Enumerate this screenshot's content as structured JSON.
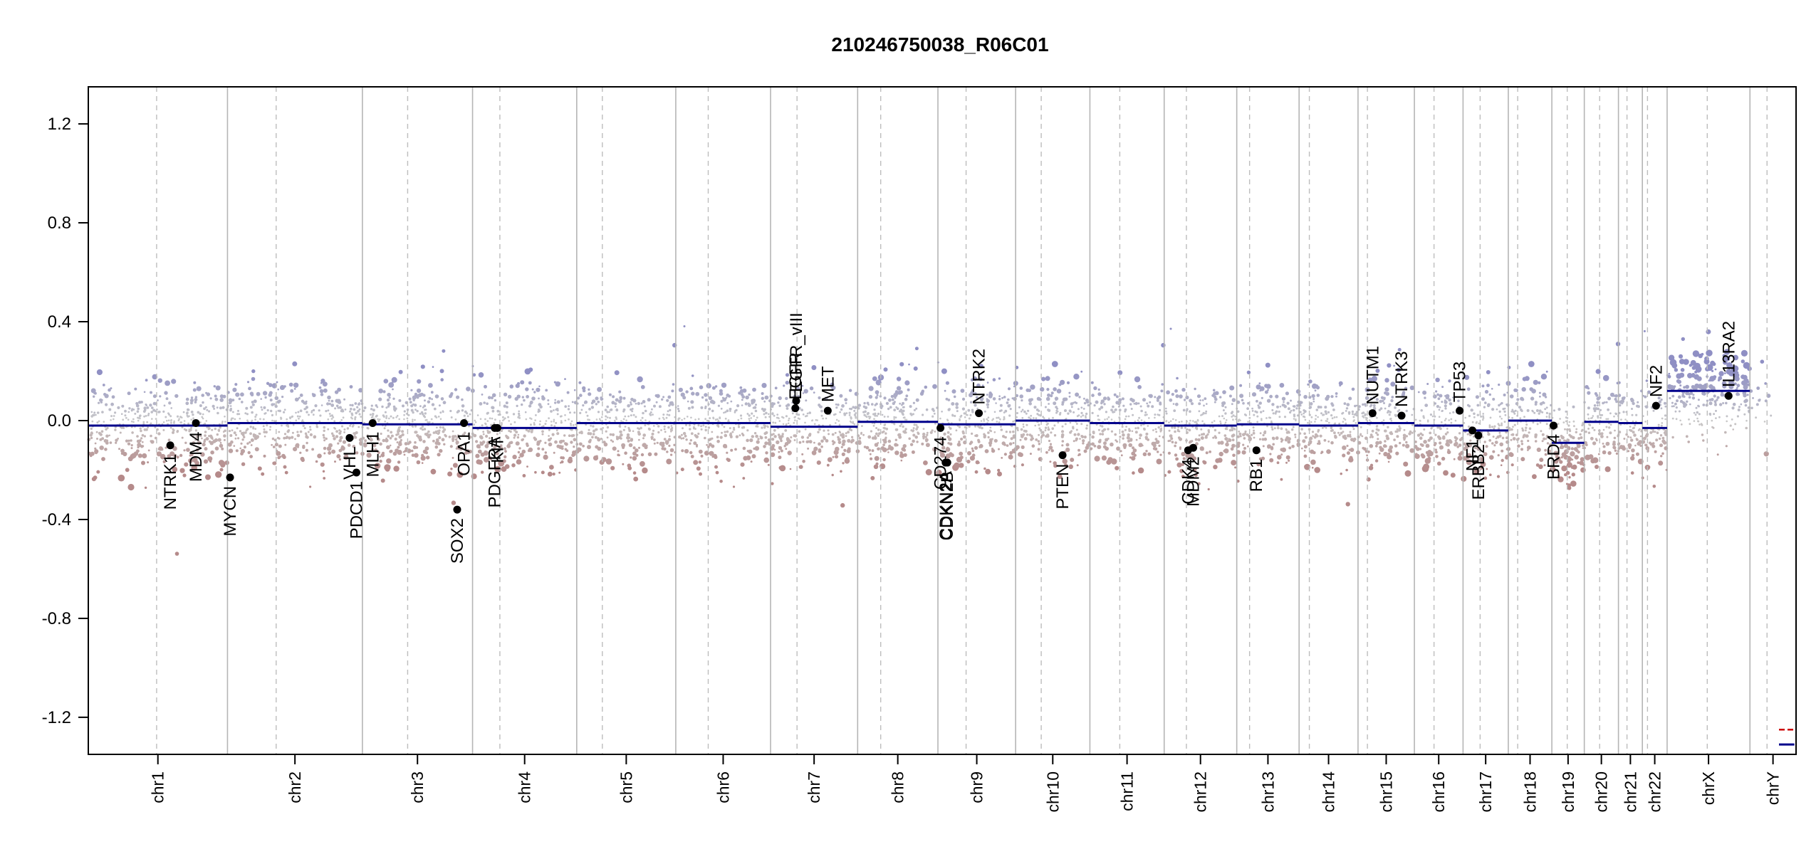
{
  "chart_data": {
    "type": "scatter",
    "title": "210246750038_R06C01",
    "xlabel": "",
    "ylabel": "",
    "ylim": [
      -1.35,
      1.35
    ],
    "y_ticks": [
      -1.2,
      -0.8,
      -0.4,
      0.0,
      0.4,
      0.8,
      1.2
    ],
    "y_tick_labels": [
      "-1.2",
      "-0.8",
      "-0.4",
      "0.0",
      "0.4",
      "0.8",
      "1.2"
    ],
    "grid": false,
    "colors": {
      "gain": "#8f8fc4",
      "neutral": "#c8c8c8",
      "loss": "#b58a8a",
      "segment": "#00008b",
      "genes": "#000000"
    },
    "chromosomes": [
      {
        "name": "chr1",
        "start": 0.0,
        "end": 0.0815,
        "centromere": 0.04
      },
      {
        "name": "chr2",
        "start": 0.0815,
        "end": 0.1605,
        "centromere": 0.11
      },
      {
        "name": "chr3",
        "start": 0.1605,
        "end": 0.225,
        "centromere": 0.187
      },
      {
        "name": "chr4",
        "start": 0.225,
        "end": 0.286,
        "centromere": 0.241
      },
      {
        "name": "chr5",
        "start": 0.286,
        "end": 0.344,
        "centromere": 0.301
      },
      {
        "name": "chr6",
        "start": 0.344,
        "end": 0.3995,
        "centromere": 0.363
      },
      {
        "name": "chr7",
        "start": 0.3995,
        "end": 0.4505,
        "centromere": 0.415
      },
      {
        "name": "chr8",
        "start": 0.4505,
        "end": 0.4975,
        "centromere": 0.464
      },
      {
        "name": "chr9",
        "start": 0.4975,
        "end": 0.543,
        "centromere": 0.514
      },
      {
        "name": "chr10",
        "start": 0.543,
        "end": 0.5865,
        "centromere": 0.558
      },
      {
        "name": "chr11",
        "start": 0.5865,
        "end": 0.63,
        "centromere": 0.604
      },
      {
        "name": "chr12",
        "start": 0.63,
        "end": 0.6725,
        "centromere": 0.643
      },
      {
        "name": "chr13",
        "start": 0.6725,
        "end": 0.709,
        "centromere": 0.68
      },
      {
        "name": "chr14",
        "start": 0.709,
        "end": 0.7435,
        "centromere": 0.715
      },
      {
        "name": "chr15",
        "start": 0.7435,
        "end": 0.7765,
        "centromere": 0.749
      },
      {
        "name": "chr16",
        "start": 0.7765,
        "end": 0.805,
        "centromere": 0.788
      },
      {
        "name": "chr17",
        "start": 0.805,
        "end": 0.8315,
        "centromere": 0.815
      },
      {
        "name": "chr18",
        "start": 0.8315,
        "end": 0.857,
        "centromere": 0.837
      },
      {
        "name": "chr19",
        "start": 0.857,
        "end": 0.876,
        "centromere": 0.866
      },
      {
        "name": "chr20",
        "start": 0.876,
        "end": 0.896,
        "centromere": 0.885
      },
      {
        "name": "chr21",
        "start": 0.896,
        "end": 0.91,
        "centromere": 0.901
      },
      {
        "name": "chr22",
        "start": 0.91,
        "end": 0.9245,
        "centromere": 0.913
      },
      {
        "name": "chrX",
        "start": 0.9245,
        "end": 0.973,
        "centromere": 0.948
      },
      {
        "name": "chrY",
        "start": 0.973,
        "end": 1.0,
        "centromere": 0.983
      }
    ],
    "segments": [
      {
        "x0": 0.0,
        "x1": 0.0815,
        "y": -0.02
      },
      {
        "x0": 0.0815,
        "x1": 0.1605,
        "y": -0.01
      },
      {
        "x0": 0.1605,
        "x1": 0.225,
        "y": -0.015
      },
      {
        "x0": 0.225,
        "x1": 0.286,
        "y": -0.03
      },
      {
        "x0": 0.286,
        "x1": 0.3995,
        "y": -0.01
      },
      {
        "x0": 0.3995,
        "x1": 0.4505,
        "y": -0.025
      },
      {
        "x0": 0.4505,
        "x1": 0.4975,
        "y": -0.005
      },
      {
        "x0": 0.4975,
        "x1": 0.543,
        "y": -0.015
      },
      {
        "x0": 0.543,
        "x1": 0.5865,
        "y": 0.0
      },
      {
        "x0": 0.5865,
        "x1": 0.63,
        "y": -0.01
      },
      {
        "x0": 0.63,
        "x1": 0.6725,
        "y": -0.02
      },
      {
        "x0": 0.6725,
        "x1": 0.709,
        "y": -0.015
      },
      {
        "x0": 0.709,
        "x1": 0.7435,
        "y": -0.02
      },
      {
        "x0": 0.7435,
        "x1": 0.7765,
        "y": -0.01
      },
      {
        "x0": 0.7765,
        "x1": 0.805,
        "y": -0.02
      },
      {
        "x0": 0.805,
        "x1": 0.8315,
        "y": -0.04
      },
      {
        "x0": 0.8315,
        "x1": 0.857,
        "y": 0.0
      },
      {
        "x0": 0.857,
        "x1": 0.876,
        "y": -0.09
      },
      {
        "x0": 0.876,
        "x1": 0.896,
        "y": -0.005
      },
      {
        "x0": 0.896,
        "x1": 0.91,
        "y": -0.01
      },
      {
        "x0": 0.91,
        "x1": 0.9245,
        "y": -0.03
      },
      {
        "x0": 0.9245,
        "x1": 0.973,
        "y": 0.12
      },
      {
        "x0": 0.99,
        "x1": 0.999,
        "y": -1.31
      }
    ],
    "segments_alt": [
      {
        "x0": 0.99,
        "x1": 0.999,
        "y": -1.25,
        "color": "#cc0000"
      }
    ],
    "genes": [
      {
        "name": "NTRK1",
        "x": 0.048,
        "y": -0.1,
        "label_pos": "below"
      },
      {
        "name": "MDM4",
        "x": 0.063,
        "y": -0.01,
        "label_pos": "below"
      },
      {
        "name": "MYCN",
        "x": 0.083,
        "y": -0.23,
        "label_pos": "below"
      },
      {
        "name": "VHL",
        "x": 0.153,
        "y": -0.07,
        "label_pos": "below"
      },
      {
        "name": "PDCD1",
        "x": 0.157,
        "y": -0.21,
        "label_pos": "below"
      },
      {
        "name": "MLH1",
        "x": 0.1665,
        "y": -0.01,
        "label_pos": "below"
      },
      {
        "name": "SOX2",
        "x": 0.216,
        "y": -0.36,
        "label_pos": "below"
      },
      {
        "name": "OPA1",
        "x": 0.22,
        "y": -0.01,
        "label_pos": "below"
      },
      {
        "name": "PDGFRA",
        "x": 0.238,
        "y": -0.03,
        "label_pos": "below"
      },
      {
        "name": "KIT",
        "x": 0.2395,
        "y": -0.03,
        "label_pos": "below"
      },
      {
        "name": "EGFR",
        "x": 0.414,
        "y": 0.05,
        "label_pos": "above"
      },
      {
        "name": "EGFR_vIII",
        "x": 0.4145,
        "y": 0.08,
        "label_pos": "above"
      },
      {
        "name": "MET",
        "x": 0.433,
        "y": 0.04,
        "label_pos": "above"
      },
      {
        "name": "CD274",
        "x": 0.499,
        "y": -0.03,
        "label_pos": "below"
      },
      {
        "name": "CDKN2A",
        "x": 0.502,
        "y": -0.17,
        "label_pos": "below"
      },
      {
        "name": "CDKN2B",
        "x": 0.503,
        "y": -0.17,
        "label_pos": "below"
      },
      {
        "name": "NTRK2",
        "x": 0.5215,
        "y": 0.03,
        "label_pos": "above"
      },
      {
        "name": "PTEN",
        "x": 0.5705,
        "y": -0.14,
        "label_pos": "below"
      },
      {
        "name": "CDK4",
        "x": 0.644,
        "y": -0.12,
        "label_pos": "below"
      },
      {
        "name": "MDM2",
        "x": 0.647,
        "y": -0.11,
        "label_pos": "below"
      },
      {
        "name": "RB1",
        "x": 0.684,
        "y": -0.12,
        "label_pos": "below"
      },
      {
        "name": "NUTM1",
        "x": 0.752,
        "y": 0.03,
        "label_pos": "above"
      },
      {
        "name": "NTRK3",
        "x": 0.769,
        "y": 0.02,
        "label_pos": "above"
      },
      {
        "name": "TP53",
        "x": 0.803,
        "y": 0.04,
        "label_pos": "above"
      },
      {
        "name": "NF1",
        "x": 0.8105,
        "y": -0.04,
        "label_pos": "below"
      },
      {
        "name": "ERBB2",
        "x": 0.814,
        "y": -0.06,
        "label_pos": "below"
      },
      {
        "name": "BRD4",
        "x": 0.858,
        "y": -0.02,
        "label_pos": "below"
      },
      {
        "name": "NF2",
        "x": 0.918,
        "y": 0.06,
        "label_pos": "above"
      },
      {
        "name": "IL13RA2",
        "x": 0.9605,
        "y": 0.1,
        "label_pos": "above"
      }
    ]
  }
}
